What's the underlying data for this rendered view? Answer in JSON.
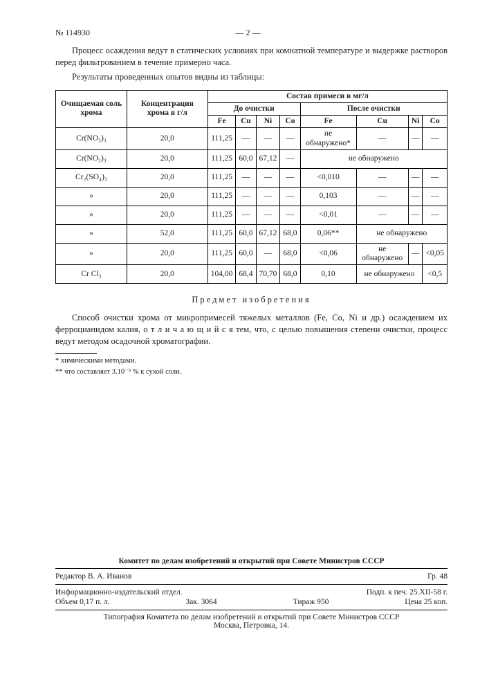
{
  "header": {
    "doc_no": "№ 114930",
    "page_marker": "— 2 —"
  },
  "para1": "Процесс осаждения ведут в статических условиях при комнатной температуре и выдержке растворов перед фильтрованием в течение примерно часа.",
  "para2": "Результаты проведенных опытов видны из таблицы:",
  "table": {
    "head": {
      "c1": "Очищаемая соль хрома",
      "c2": "Концентрация хрома в г/л",
      "comp_title": "Состав примеси в мг/л",
      "before": "До очистки",
      "after": "После очистки",
      "elems": [
        "Fe",
        "Cu",
        "Ni",
        "Co",
        "Fe",
        "Cu",
        "Ni",
        "Co"
      ]
    },
    "rows": [
      [
        "Cr(NO₃)₃",
        "20,0",
        "111,25",
        "—",
        "—",
        "—",
        "не обнаружено*",
        "—",
        "—",
        "—"
      ],
      [
        "Cr(NO₃)₃",
        "20,0",
        "111,25",
        "60,0",
        "67,12",
        "—",
        "не обнаружено",
        "",
        "",
        ""
      ],
      [
        "Cr₂(SO₄)₃",
        "20,0",
        "111,25",
        "—",
        "—",
        "—",
        "<0,010",
        "—",
        "—",
        "—"
      ],
      [
        "»",
        "20,0",
        "111,25",
        "—",
        "—",
        "—",
        "0,103",
        "—",
        "—",
        "—"
      ],
      [
        "»",
        "20,0",
        "111,25",
        "—",
        "—",
        "—",
        "<0,01",
        "—",
        "—",
        "—"
      ],
      [
        "»",
        "52,0",
        "111,25",
        "60,0",
        "67,12",
        "68,0",
        "0,06**",
        "не обнаружено",
        "",
        ""
      ],
      [
        "»",
        "20,0",
        "111,25",
        "60,0",
        "—",
        "68,0",
        "<0,06",
        "не обнаружено",
        "—",
        "<0,05"
      ],
      [
        "Cr Cl₃",
        "20,0",
        "104,00",
        "68,4",
        "70,70",
        "68,0",
        "0,10",
        "не обнаружено",
        "",
        "<0,5"
      ]
    ]
  },
  "subject_title": "Предмет изобретения",
  "para3": "Способ очистки хрома от микропримесей тяжелых металлов (Fe, Co, Ni и др.) осаждением их ферроцианидом калия, о т л и ч а ю щ и й с я тем, что, с целью повышения степени очистки, процесс ведут методом осадочной хроматографии.",
  "footnotes": {
    "f1": "* химическими методами.",
    "f2": "** что составляет 3.10⁻⁵ % к сухой соли."
  },
  "imprint": {
    "committee": "Комитет по делам изобретений и открытий при Совете Министров СССР",
    "editor": "Редактор В. А. Иванов",
    "group": "Гр. 48",
    "dept": "Информационно-издательский отдел.",
    "signed": "Подп. к печ. 25.XII-58 г.",
    "volume": "Объем 0,17 п. л.",
    "order": "Зак. 3064",
    "tiraj": "Тираж 950",
    "price": "Цена 25 коп.",
    "typo1": "Типография Комитета по делам изобретений и открытий при Совете Министров СССР",
    "typo2": "Москва, Петровка, 14."
  }
}
